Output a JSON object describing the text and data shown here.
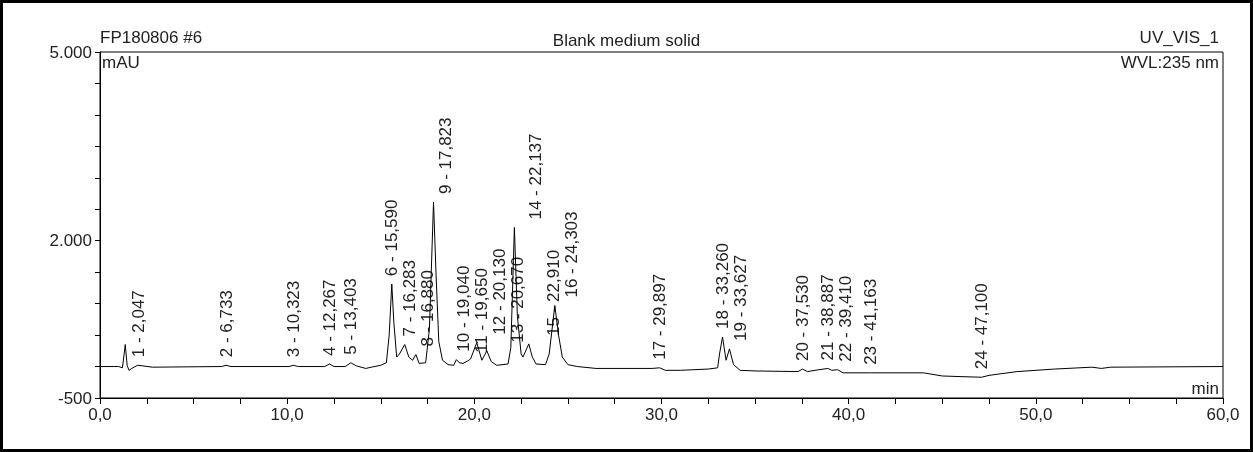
{
  "chart_data": {
    "type": "line",
    "title": "Blank medium solid",
    "xlabel": "min",
    "ylabel": "mAU",
    "annotations": [
      "FP180806 #6",
      "UV_VIS_1",
      "WVL:235 nm",
      {
        "text": "1 - 2,047",
        "x": 2.047,
        "y": 20
      },
      {
        "text": "2 - 6,733",
        "x": 6.733,
        "y": 20
      },
      {
        "text": "3 - 10,323",
        "x": 10.323,
        "y": 20
      },
      {
        "text": "4 - 12,267",
        "x": 12.267,
        "y": 40
      },
      {
        "text": "5 - 13,403",
        "x": 13.403,
        "y": 60
      },
      {
        "text": "6 - 15,590",
        "x": 15.59,
        "y": 1310
      },
      {
        "text": "7 - 16,283",
        "x": 16.283,
        "y": 350
      },
      {
        "text": "8 - 16,880",
        "x": 16.88,
        "y": 190
      },
      {
        "text": "9 - 17,823",
        "x": 17.823,
        "y": 2615
      },
      {
        "text": "10 - 19,040",
        "x": 19.04,
        "y": 110
      },
      {
        "text": "11 - 19,650",
        "x": 19.65,
        "y": 90
      },
      {
        "text": "12 - 20,130",
        "x": 20.13,
        "y": 380
      },
      {
        "text": "13 - 20,670",
        "x": 20.67,
        "y": 250
      },
      {
        "text": "14 - 22,137",
        "x": 22.137,
        "y": 2210
      },
      {
        "text": "15 - 22,910",
        "x": 22.91,
        "y": 360
      },
      {
        "text": "16 - 24,303",
        "x": 24.303,
        "y": 970
      },
      {
        "text": "17 - 29,897",
        "x": 29.897,
        "y": -20
      },
      {
        "text": "18 - 33,260",
        "x": 33.26,
        "y": 470
      },
      {
        "text": "19 - 33,627",
        "x": 33.627,
        "y": 280
      },
      {
        "text": "20 - 37,530",
        "x": 37.53,
        "y": -40
      },
      {
        "text": "21 - 38,887",
        "x": 38.887,
        "y": -30
      },
      {
        "text": "22 - 39,410",
        "x": 39.41,
        "y": -50
      },
      {
        "text": "23 - 41,163",
        "x": 41.163,
        "y": -100
      },
      {
        "text": "24 - 47,100",
        "x": 47.1,
        "y": -170
      }
    ],
    "x": [
      0,
      1.0,
      1.2,
      1.35,
      1.45,
      1.55,
      1.7,
      2.0,
      2.3,
      2.8,
      6.5,
      6.73,
      7.0,
      10.1,
      10.32,
      10.6,
      12.0,
      12.27,
      12.5,
      13.1,
      13.4,
      13.7,
      14.2,
      14.5,
      15.0,
      15.3,
      15.45,
      15.59,
      15.7,
      15.85,
      16.0,
      16.28,
      16.5,
      16.7,
      16.88,
      17.05,
      17.4,
      17.6,
      17.82,
      17.95,
      18.1,
      18.3,
      18.6,
      18.9,
      19.04,
      19.2,
      19.4,
      19.65,
      19.8,
      20.13,
      20.4,
      20.67,
      20.9,
      21.2,
      21.8,
      21.95,
      22.14,
      22.3,
      22.5,
      22.6,
      22.91,
      23.1,
      23.3,
      23.8,
      24.0,
      24.3,
      24.5,
      24.7,
      25.0,
      25.5,
      26.5,
      29.5,
      29.9,
      30.2,
      31,
      32.5,
      33.0,
      33.1,
      33.26,
      33.45,
      33.63,
      33.85,
      34.2,
      35,
      37.3,
      37.53,
      37.8,
      38.2,
      38.887,
      39.1,
      39.41,
      39.7,
      41.163,
      44,
      45,
      46,
      47.1,
      47.5,
      49,
      51,
      53,
      53.5,
      54,
      60
    ],
    "values": [
      0,
      0,
      -20,
      350,
      20,
      -60,
      -30,
      20,
      10,
      -10,
      0,
      20,
      0,
      0,
      20,
      0,
      0,
      40,
      0,
      0,
      60,
      10,
      -30,
      -10,
      20,
      60,
      500,
      1310,
      700,
      150,
      200,
      350,
      150,
      100,
      190,
      50,
      60,
      600,
      2615,
      1500,
      400,
      100,
      30,
      20,
      110,
      60,
      50,
      90,
      120,
      380,
      100,
      250,
      80,
      20,
      40,
      300,
      2210,
      800,
      200,
      150,
      360,
      150,
      40,
      30,
      200,
      970,
      500,
      150,
      30,
      0,
      -30,
      -30,
      -20,
      -60,
      -60,
      -40,
      -20,
      200,
      470,
      100,
      280,
      30,
      -60,
      -70,
      -80,
      -40,
      -80,
      -60,
      -30,
      -60,
      -50,
      -100,
      -100,
      -100,
      -150,
      -160,
      -170,
      -140,
      -80,
      -40,
      -10,
      -30,
      -10,
      0
    ],
    "color": "#000000",
    "marker": "none",
    "xlim": [
      0,
      60
    ],
    "xticks": [
      {
        "value": 0,
        "label": "0,0"
      },
      {
        "value": 2.5,
        "label": null
      },
      {
        "value": 5,
        "label": null
      },
      {
        "value": 7.5,
        "label": null
      },
      {
        "value": 10,
        "label": "10,0"
      },
      {
        "value": 12.5,
        "label": null
      },
      {
        "value": 15,
        "label": null
      },
      {
        "value": 17.5,
        "label": null
      },
      {
        "value": 20,
        "label": "20,0"
      },
      {
        "value": 22.5,
        "label": null
      },
      {
        "value": 25,
        "label": null
      },
      {
        "value": 27.5,
        "label": null
      },
      {
        "value": 30,
        "label": "30,0"
      },
      {
        "value": 32.5,
        "label": null
      },
      {
        "value": 35,
        "label": null
      },
      {
        "value": 37.5,
        "label": null
      },
      {
        "value": 40,
        "label": "40,0"
      },
      {
        "value": 42.5,
        "label": null
      },
      {
        "value": 45,
        "label": null
      },
      {
        "value": 47.5,
        "label": null
      },
      {
        "value": 50,
        "label": "50,0"
      },
      {
        "value": 52.5,
        "label": null
      },
      {
        "value": 55,
        "label": null
      },
      {
        "value": 57.5,
        "label": null
      },
      {
        "value": 60,
        "label": "60,0"
      }
    ],
    "ylim": [
      -500,
      5000
    ],
    "yticks": [
      -500,
      {
        "value": 0,
        "label": null
      },
      {
        "value": 500,
        "label": null
      },
      {
        "value": 1000,
        "label": null
      },
      {
        "value": 1500,
        "label": null
      },
      {
        "value": 2000,
        "label": "2.000"
      },
      {
        "value": 2500,
        "label": null
      },
      {
        "value": 3000,
        "label": null
      },
      {
        "value": 3500,
        "label": null
      },
      {
        "value": 4000,
        "label": null
      },
      {
        "value": 4500,
        "label": null
      },
      {
        "value": 5000,
        "label": "5.000"
      }
    ],
    "grid": false
  }
}
